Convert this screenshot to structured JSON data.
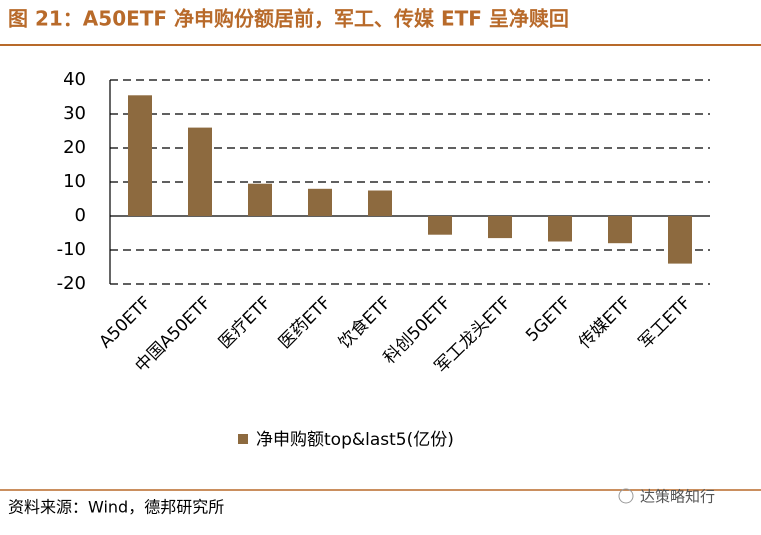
{
  "header": {
    "title": "图 21：A50ETF 净申购份额居前，军工、传媒 ETF 呈净赎回"
  },
  "chart_data": {
    "type": "bar",
    "categories": [
      "A50ETF",
      "中国A50ETF",
      "医疗ETF",
      "医药ETF",
      "饮食ETF",
      "科创50ETF",
      "军工龙头ETF",
      "5GETF",
      "传媒ETF",
      "军工ETF"
    ],
    "series": [
      {
        "name": "净申购额top&last5(亿份)",
        "color": "#8d6a3f",
        "values": [
          35.5,
          26,
          9.5,
          8,
          7.5,
          -5.5,
          -6.5,
          -7.5,
          -8,
          -14
        ]
      }
    ],
    "ylim": [
      -20,
      40
    ],
    "yticks": [
      -20,
      -10,
      0,
      10,
      20,
      30,
      40
    ],
    "grid": true
  },
  "footer": {
    "source": "资料来源：Wind，德邦研究所",
    "watermark": "达策略知行"
  }
}
